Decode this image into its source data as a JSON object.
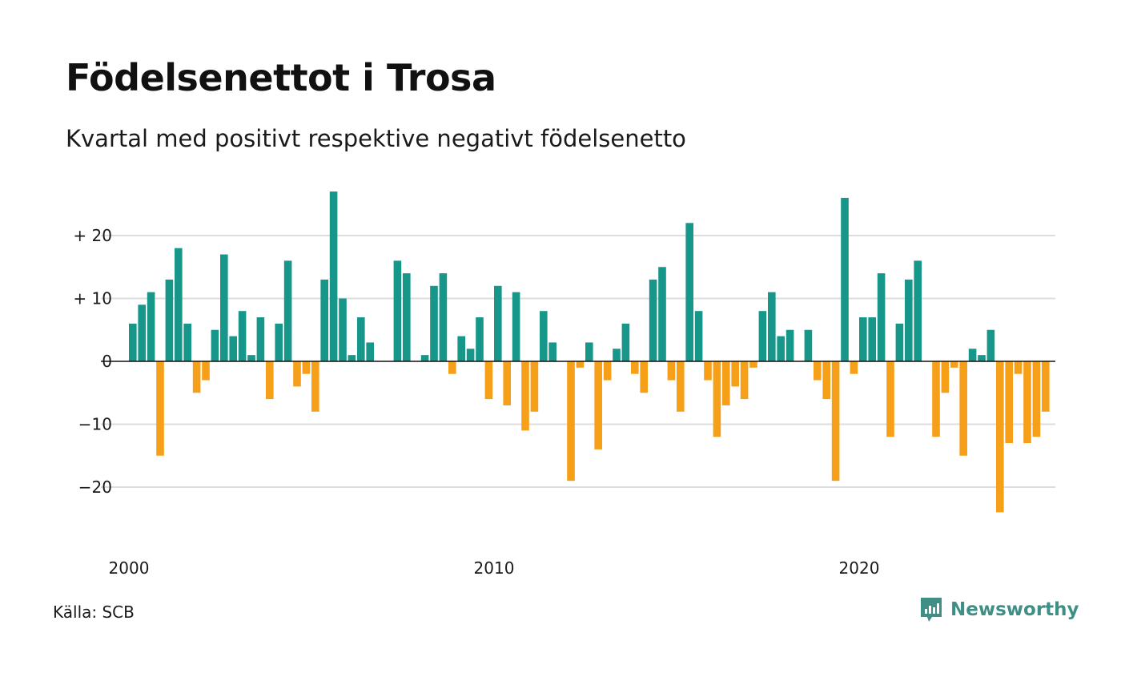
{
  "title": "Födelsenettot i Trosa",
  "subtitle": "Kvartal med positivt respektive negativt födelsenetto",
  "source": "Källa: SCB",
  "brand": {
    "name": "Newsworthy",
    "icon": "newsworthy-logo-icon",
    "color": "#3f8f87"
  },
  "colors": {
    "positive": "#17968a",
    "negative": "#f6a01a",
    "grid": "#dddddd",
    "zero_line": "#111111"
  },
  "chart_data": {
    "type": "bar",
    "title": "Födelsenettot i Trosa",
    "subtitle": "Kvartal med positivt respektive negativt födelsenetto",
    "xlabel": "",
    "ylabel": "",
    "x_start_year": 2000,
    "periods_per_year": 4,
    "x_ticks": [
      "2000",
      "2010",
      "2020"
    ],
    "y_ticks": [
      {
        "value": 20,
        "label": "+ 20"
      },
      {
        "value": 10,
        "label": "+ 10"
      },
      {
        "value": 0,
        "label": "0"
      },
      {
        "value": -10,
        "label": "−10"
      },
      {
        "value": -20,
        "label": "−20"
      }
    ],
    "ylim": [
      -27,
      27
    ],
    "grid": true,
    "values": [
      6,
      9,
      11,
      -15,
      13,
      18,
      6,
      -5,
      -3,
      5,
      17,
      4,
      8,
      1,
      7,
      -6,
      6,
      16,
      -4,
      -2,
      -8,
      13,
      27,
      10,
      1,
      7,
      3,
      0,
      0,
      16,
      14,
      0,
      1,
      12,
      14,
      -2,
      4,
      2,
      7,
      -6,
      12,
      -7,
      11,
      -11,
      -8,
      8,
      3,
      0,
      -19,
      -1,
      3,
      -14,
      -3,
      2,
      6,
      -2,
      -5,
      13,
      15,
      -3,
      -8,
      22,
      8,
      -3,
      -12,
      -7,
      -4,
      -6,
      -1,
      8,
      11,
      4,
      5,
      0,
      5,
      -3,
      -6,
      -19,
      26,
      -2,
      7,
      7,
      14,
      -12,
      6,
      13,
      16,
      0,
      -12,
      -5,
      -1,
      -15,
      2,
      1,
      5,
      -24,
      -13,
      -2,
      -13,
      -12,
      -8
    ]
  }
}
